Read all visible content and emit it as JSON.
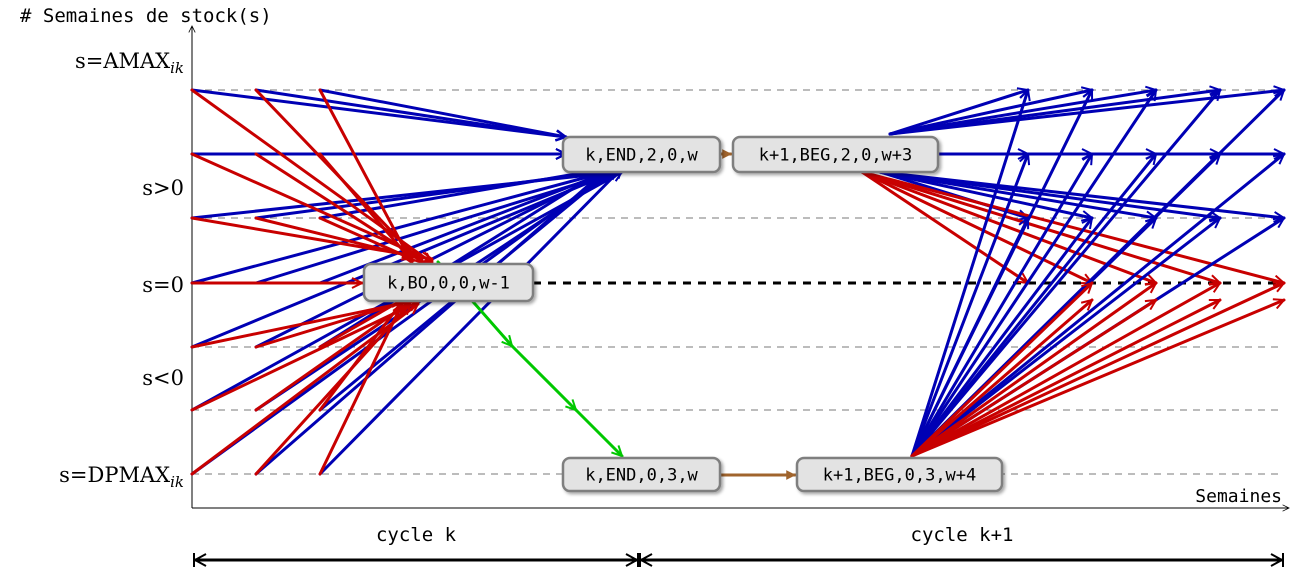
{
  "axes": {
    "y_title": "# Semaines de stock(s)",
    "x_title": "Semaines"
  },
  "levels": [
    {
      "label_main": "s=AMAX",
      "label_sub": "ik"
    },
    {
      "label_main": "s>0",
      "label_sub": ""
    },
    {
      "label_main": "s=0",
      "label_sub": ""
    },
    {
      "label_main": "s<0",
      "label_sub": ""
    },
    {
      "label_main": "s=DPMAX",
      "label_sub": "ik"
    }
  ],
  "nodes": {
    "end_pos": "k,END,2,0,w",
    "beg_pos": "k+1,BEG,2,0,w+3",
    "bo": "k,BO,0,0,w-1",
    "end_neg": "k,END,0,3,w",
    "beg_neg": "k+1,BEG,0,3,w+4"
  },
  "cycles": [
    {
      "label": "cycle k"
    },
    {
      "label": "cycle k+1"
    }
  ],
  "colors": {
    "blue": "#0000b4",
    "red": "#c80000",
    "green": "#00c800",
    "brown": "#a0642d",
    "node_fill": "#e3e3e3",
    "node_border": "#7f7f7f"
  }
}
